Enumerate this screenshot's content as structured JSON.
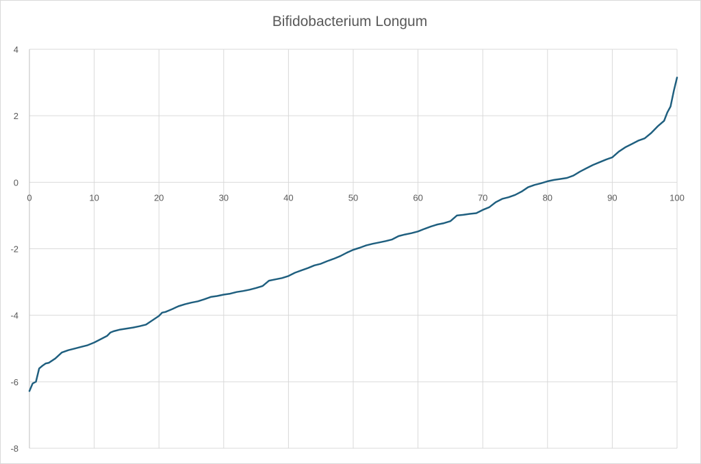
{
  "colors": {
    "series": "#1f5f7f",
    "grid": "#d9d9d9",
    "text": "#595959"
  },
  "chart_data": {
    "type": "line",
    "title": "Bifidobacterium Longum",
    "xlabel": "",
    "ylabel": "",
    "xlim": [
      0,
      100
    ],
    "ylim": [
      -8,
      4
    ],
    "x_ticks": [
      0,
      10,
      20,
      30,
      40,
      50,
      60,
      70,
      80,
      90,
      100
    ],
    "x_tick_labels": [
      "0",
      "10",
      "20",
      "30",
      "40",
      "50",
      "60",
      "70",
      "80",
      "90",
      "100"
    ],
    "y_ticks": [
      4,
      2,
      0,
      -2,
      -4,
      -6,
      -8
    ],
    "y_tick_labels": [
      "4",
      "2",
      "0",
      "-2",
      "-4",
      "-6",
      "-8"
    ],
    "grid": true,
    "legend": "none",
    "series": [
      {
        "x": [
          0,
          0.5,
          1,
          1.5,
          2,
          2.5,
          3,
          4,
          5,
          6,
          7,
          8,
          9,
          10,
          11,
          12,
          12.5,
          13,
          14,
          15,
          16,
          17,
          18,
          19,
          20,
          20.5,
          21,
          22,
          23,
          24,
          25,
          26,
          27,
          28,
          29,
          30,
          31,
          32,
          33,
          34,
          35,
          36,
          37,
          38,
          39,
          40,
          41,
          42,
          43,
          44,
          45,
          46,
          47,
          48,
          49,
          50,
          51,
          52,
          53,
          54,
          55,
          56,
          57,
          58,
          59,
          60,
          61,
          62,
          63,
          64,
          65,
          66,
          67,
          68,
          69,
          70,
          71,
          72,
          73,
          74,
          75,
          76,
          77,
          78,
          79,
          80,
          81,
          82,
          83,
          84,
          85,
          86,
          87,
          88,
          89,
          90,
          91,
          92,
          93,
          94,
          95,
          96,
          97,
          98,
          98.5,
          99,
          99.5,
          100
        ],
        "values": [
          -6.28,
          -6.05,
          -6.0,
          -5.6,
          -5.52,
          -5.45,
          -5.43,
          -5.3,
          -5.12,
          -5.05,
          -5.0,
          -4.95,
          -4.9,
          -4.82,
          -4.72,
          -4.62,
          -4.52,
          -4.48,
          -4.43,
          -4.4,
          -4.37,
          -4.33,
          -4.28,
          -4.15,
          -4.02,
          -3.92,
          -3.9,
          -3.82,
          -3.73,
          -3.67,
          -3.62,
          -3.58,
          -3.52,
          -3.45,
          -3.42,
          -3.38,
          -3.35,
          -3.3,
          -3.27,
          -3.23,
          -3.18,
          -3.12,
          -2.96,
          -2.92,
          -2.88,
          -2.82,
          -2.72,
          -2.65,
          -2.58,
          -2.5,
          -2.45,
          -2.37,
          -2.3,
          -2.22,
          -2.12,
          -2.03,
          -1.97,
          -1.9,
          -1.85,
          -1.81,
          -1.77,
          -1.72,
          -1.62,
          -1.57,
          -1.53,
          -1.48,
          -1.4,
          -1.33,
          -1.27,
          -1.23,
          -1.17,
          -1.0,
          -0.98,
          -0.95,
          -0.93,
          -0.83,
          -0.75,
          -0.6,
          -0.5,
          -0.45,
          -0.38,
          -0.28,
          -0.15,
          -0.08,
          -0.03,
          0.03,
          0.07,
          0.1,
          0.13,
          0.2,
          0.32,
          0.42,
          0.52,
          0.6,
          0.68,
          0.75,
          0.92,
          1.05,
          1.15,
          1.25,
          1.32,
          1.48,
          1.68,
          1.85,
          2.1,
          2.28,
          2.75,
          3.15
        ]
      }
    ]
  }
}
